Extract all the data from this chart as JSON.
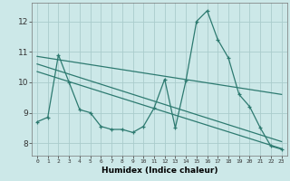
{
  "xlabel": "Humidex (Indice chaleur)",
  "ylabel": "",
  "bg_color": "#cce8e8",
  "grid_color": "#aacccc",
  "line_color": "#2d7a70",
  "xlim": [
    -0.5,
    23.5
  ],
  "ylim": [
    7.6,
    12.6
  ],
  "yticks": [
    8,
    9,
    10,
    11,
    12
  ],
  "xticks": [
    0,
    1,
    2,
    3,
    4,
    5,
    6,
    7,
    8,
    9,
    10,
    11,
    12,
    13,
    14,
    15,
    16,
    17,
    18,
    19,
    20,
    21,
    22,
    23
  ],
  "line1_x": [
    0,
    1,
    2,
    3,
    4,
    5,
    6,
    7,
    8,
    9,
    10,
    11,
    12,
    13,
    14,
    15,
    16,
    17,
    18,
    19,
    20,
    21,
    22,
    23
  ],
  "line1_y": [
    8.7,
    8.85,
    10.9,
    10.0,
    9.1,
    9.0,
    8.55,
    8.45,
    8.45,
    8.35,
    8.55,
    9.15,
    10.1,
    8.5,
    10.05,
    12.0,
    12.35,
    11.4,
    10.8,
    9.6,
    9.2,
    8.5,
    7.9,
    7.8
  ],
  "line2_x": [
    0,
    23
  ],
  "line2_y": [
    10.85,
    9.6
  ],
  "line3_x": [
    0,
    23
  ],
  "line3_y": [
    10.6,
    8.05
  ],
  "line4_x": [
    0,
    23
  ],
  "line4_y": [
    10.35,
    7.82
  ]
}
